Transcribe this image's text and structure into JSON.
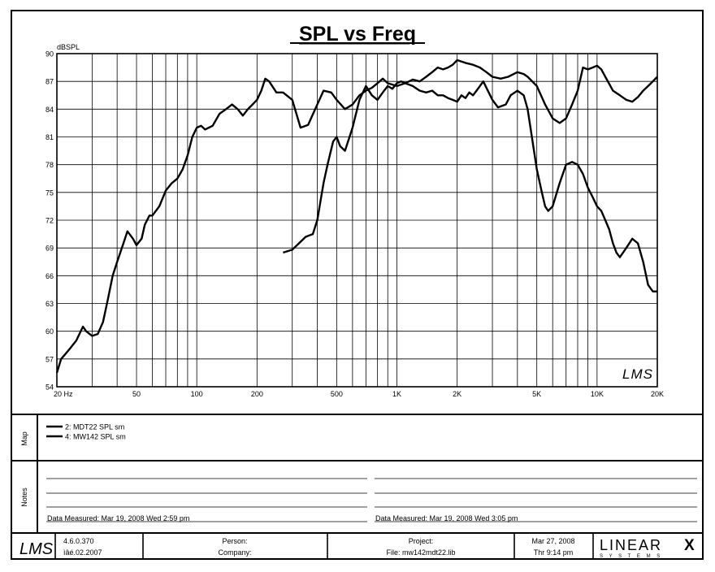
{
  "chart_data": {
    "type": "line",
    "title": "SPL vs Freq",
    "ylabel": "dBSPL",
    "xlabel": "",
    "x_scale": "log",
    "xlim": [
      20,
      20000
    ],
    "ylim": [
      54,
      90
    ],
    "grid": true,
    "y_ticks": [
      "90",
      "87",
      "84",
      "81",
      "78",
      "75",
      "72",
      "69",
      "66",
      "63",
      "60",
      "57",
      "54"
    ],
    "x_ticks": [
      {
        "f": 20,
        "label": "20  Hz"
      },
      {
        "f": 50,
        "label": "50"
      },
      {
        "f": 100,
        "label": "100"
      },
      {
        "f": 200,
        "label": "200"
      },
      {
        "f": 500,
        "label": "500"
      },
      {
        "f": 1000,
        "label": "1K"
      },
      {
        "f": 2000,
        "label": "2K"
      },
      {
        "f": 5000,
        "label": "5K"
      },
      {
        "f": 10000,
        "label": "10K"
      },
      {
        "f": 20000,
        "label": "20K"
      }
    ],
    "series": [
      {
        "name": "2: MDT22 SPL sm",
        "x": [
          270,
          300,
          350,
          380,
          400,
          430,
          450,
          480,
          500,
          520,
          550,
          600,
          650,
          700,
          750,
          800,
          850,
          900,
          950,
          1000,
          1050,
          1100,
          1200,
          1300,
          1400,
          1500,
          1600,
          1700,
          1800,
          1900,
          2000,
          2100,
          2200,
          2300,
          2400,
          2500,
          2700,
          3000,
          3200,
          3500,
          3700,
          4000,
          4300,
          4500,
          5000,
          5300,
          5500,
          5700,
          6000,
          6500,
          7000,
          7500,
          8000,
          8500,
          9000,
          9500,
          10000,
          10500,
          11000,
          11500,
          12000,
          12500,
          13000,
          14000,
          15000,
          16000,
          17000,
          18000,
          19000,
          20000
        ],
        "y": [
          68.5,
          68.8,
          70.2,
          70.5,
          72,
          76,
          78,
          80.5,
          81,
          80,
          79.5,
          82,
          85,
          86.5,
          85.5,
          85,
          85.8,
          86.5,
          86.2,
          86.8,
          87,
          86.8,
          86.5,
          86,
          85.8,
          86,
          85.5,
          85.5,
          85.2,
          85,
          84.8,
          85.5,
          85.2,
          85.8,
          85.5,
          86,
          87,
          85,
          84.2,
          84.5,
          85.5,
          86,
          85.5,
          84,
          77.5,
          75,
          73.5,
          73,
          73.5,
          76,
          78,
          78.3,
          78,
          77,
          75.5,
          74.5,
          73.5,
          73,
          72,
          71,
          69.5,
          68.5,
          68,
          69,
          70,
          69.5,
          67.5,
          65,
          64.3,
          64.3
        ]
      },
      {
        "name": "4: MW142 SPL sm",
        "x": [
          20,
          21,
          22,
          23,
          25,
          27,
          28,
          30,
          32,
          34,
          36,
          38,
          40,
          43,
          45,
          48,
          50,
          53,
          55,
          58,
          60,
          65,
          70,
          75,
          80,
          85,
          90,
          95,
          100,
          105,
          110,
          120,
          130,
          140,
          150,
          160,
          170,
          180,
          190,
          200,
          210,
          220,
          230,
          250,
          270,
          300,
          330,
          360,
          400,
          430,
          470,
          500,
          550,
          600,
          650,
          700,
          750,
          800,
          850,
          900,
          1000,
          1100,
          1200,
          1300,
          1400,
          1500,
          1600,
          1700,
          1800,
          1900,
          2000,
          2200,
          2400,
          2600,
          2800,
          3000,
          3300,
          3600,
          4000,
          4300,
          4500,
          5000,
          5500,
          6000,
          6500,
          7000,
          7500,
          8000,
          8500,
          9000,
          9500,
          10000,
          10500,
          11000,
          12000,
          13000,
          14000,
          15000,
          16000,
          17000,
          18000,
          19000,
          20000
        ],
        "y": [
          55.5,
          57,
          57.5,
          58,
          59,
          60.5,
          60,
          59.5,
          59.7,
          61,
          63.5,
          66,
          67.5,
          69.5,
          70.8,
          70,
          69.3,
          70,
          71.5,
          72.5,
          72.5,
          73.5,
          75.2,
          76,
          76.5,
          77.5,
          79,
          81,
          82,
          82.2,
          81.8,
          82.2,
          83.5,
          84,
          84.5,
          84,
          83.3,
          84,
          84.5,
          85,
          86,
          87.3,
          87,
          85.8,
          85.8,
          85,
          82,
          82.3,
          84.5,
          86,
          85.8,
          85,
          84,
          84.5,
          85.5,
          86,
          86.3,
          86.8,
          87.3,
          86.8,
          86.5,
          86.8,
          87.2,
          87,
          87.5,
          88,
          88.5,
          88.3,
          88.5,
          88.8,
          89.3,
          89,
          88.8,
          88.5,
          88,
          87.5,
          87.3,
          87.5,
          88,
          87.8,
          87.5,
          86.5,
          84.5,
          83,
          82.5,
          83,
          84.5,
          86,
          88.5,
          88.3,
          88.5,
          88.7,
          88.3,
          87.5,
          86,
          85.5,
          85,
          84.8,
          85.3,
          86,
          86.5,
          87,
          87.5
        ]
      }
    ]
  },
  "map_label": "Map",
  "notes_label": "Notes",
  "notes": [
    {
      "text": "Data Measured: Mar 19, 2008   Wed   2:59 pm"
    },
    {
      "text": "Data Measured: Mar 19, 2008   Wed   3:05 pm"
    }
  ],
  "footer": {
    "logo": "LMS",
    "version": "4.6.0.370",
    "version_date": "ìâé.02.2007",
    "person_label": "Person:",
    "company_label": "Company:",
    "project_label": "Project:",
    "file_label": "File:  mw142mdt22.lib",
    "date": "Mar 27, 2008",
    "time": "Thr   9:14 pm",
    "brand": "LINEAR",
    "brand_x": "X",
    "brand_sub": "S Y S T E M S"
  },
  "watermark": "LMS"
}
